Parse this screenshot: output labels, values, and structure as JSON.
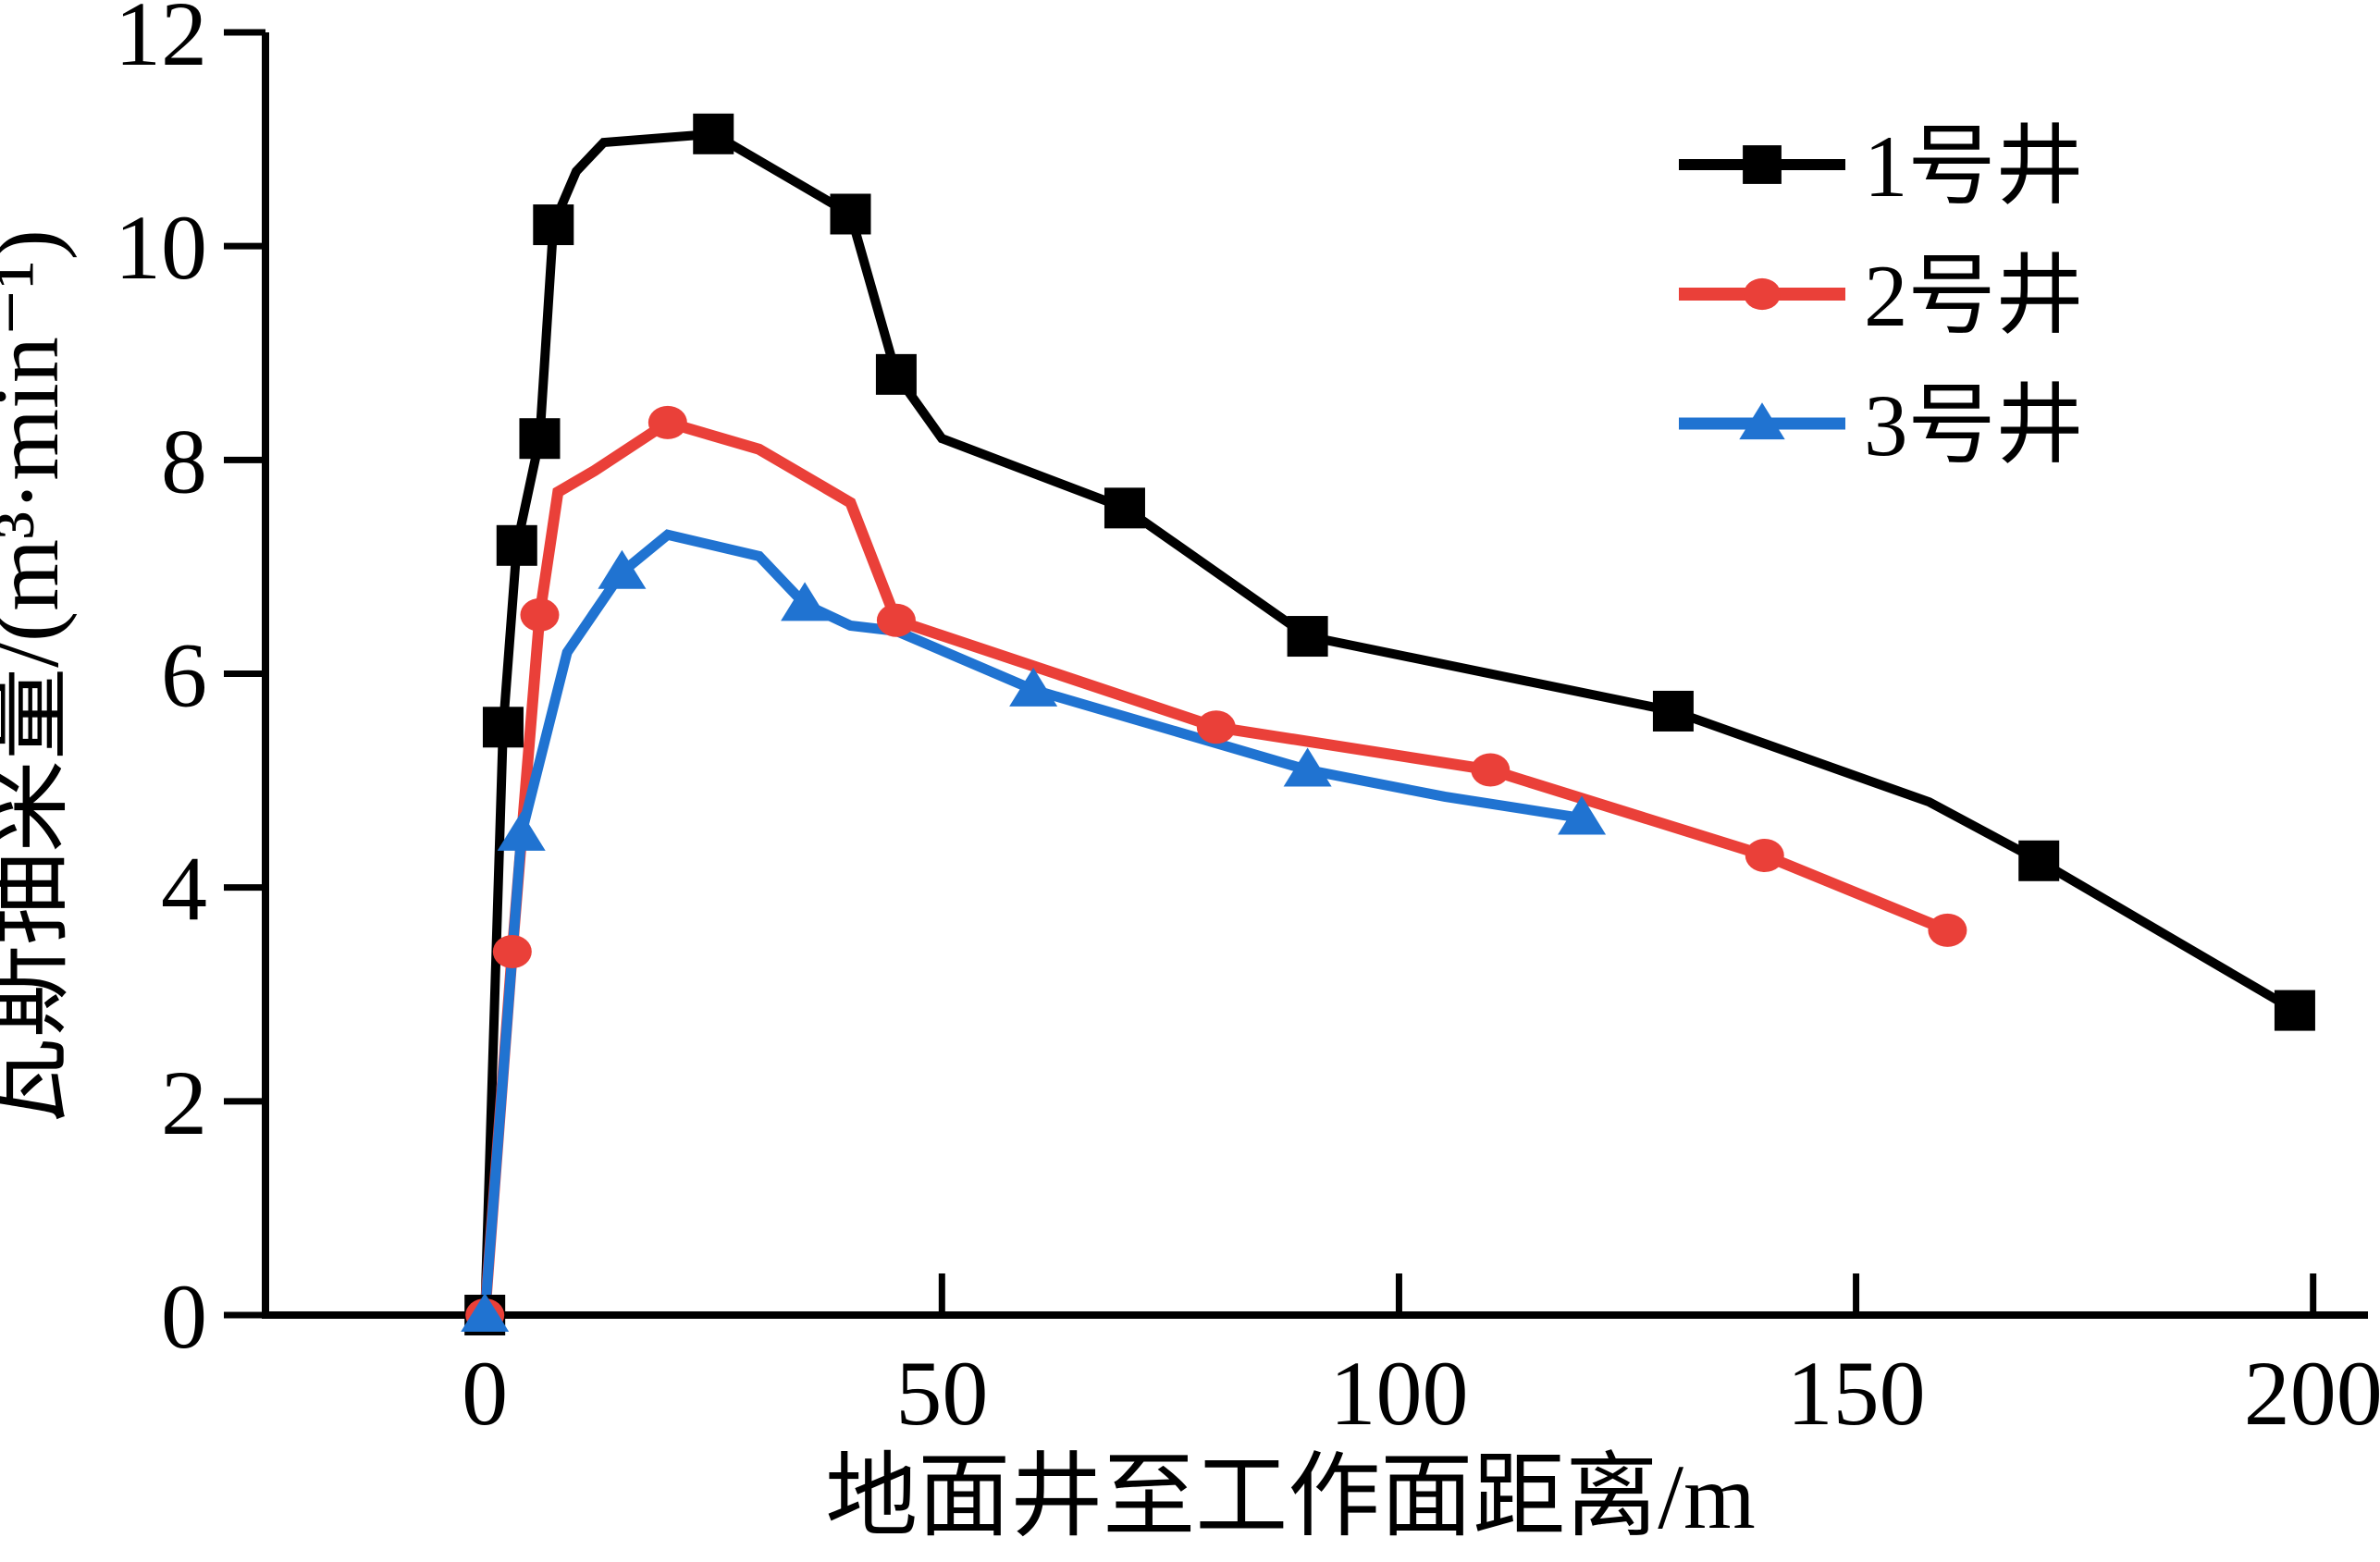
{
  "chart_data": {
    "type": "line",
    "title": "",
    "xlabel": "地面井至工作面距离/m",
    "ylabel": "瓦斯抽采量/(m³·min⁻¹)",
    "xlim": [
      -24,
      206
    ],
    "ylim": [
      0,
      12
    ],
    "xticks": [
      0,
      50,
      100,
      150,
      200
    ],
    "yticks": [
      0,
      2,
      4,
      6,
      8,
      10,
      12
    ],
    "grid": false,
    "legend_position": "top-right",
    "axis_color": "#000000",
    "series": [
      {
        "name": "1号井",
        "color": "#000000",
        "marker": "square",
        "line_width": 10,
        "line_points": [
          [
            0,
            0
          ],
          [
            2,
            5.5
          ],
          [
            3.5,
            7.2
          ],
          [
            6,
            8.2
          ],
          [
            7.5,
            10.2
          ],
          [
            10,
            10.7
          ],
          [
            13,
            10.97
          ],
          [
            25,
            11.05
          ],
          [
            40,
            10.3
          ],
          [
            45,
            8.8
          ],
          [
            50,
            8.2
          ],
          [
            70,
            7.55
          ],
          [
            90,
            6.35
          ],
          [
            130,
            5.65
          ],
          [
            158,
            4.8
          ],
          [
            170,
            4.25
          ],
          [
            198,
            2.85
          ]
        ],
        "marker_points": [
          [
            0,
            0
          ],
          [
            2,
            5.5
          ],
          [
            3.5,
            7.2
          ],
          [
            6,
            8.2
          ],
          [
            7.5,
            10.2
          ],
          [
            25,
            11.05
          ],
          [
            40,
            10.3
          ],
          [
            45,
            8.8
          ],
          [
            70,
            7.55
          ],
          [
            90,
            6.35
          ],
          [
            130,
            5.65
          ],
          [
            170,
            4.25
          ],
          [
            198,
            2.85
          ]
        ]
      },
      {
        "name": "2号井",
        "color": "#ea4039",
        "marker": "circle",
        "line_width": 12,
        "line_points": [
          [
            0,
            0
          ],
          [
            3,
            3.4
          ],
          [
            6,
            6.55
          ],
          [
            8,
            7.7
          ],
          [
            12,
            7.9
          ],
          [
            20,
            8.35
          ],
          [
            30,
            8.1
          ],
          [
            40,
            7.6
          ],
          [
            45,
            6.5
          ],
          [
            80,
            5.5
          ],
          [
            110,
            5.1
          ],
          [
            140,
            4.3
          ],
          [
            160,
            3.6
          ]
        ],
        "marker_points": [
          [
            0,
            0
          ],
          [
            3,
            3.4
          ],
          [
            6,
            6.55
          ],
          [
            20,
            8.35
          ],
          [
            45,
            6.5
          ],
          [
            80,
            5.5
          ],
          [
            110,
            5.1
          ],
          [
            140,
            4.3
          ],
          [
            160,
            3.6
          ]
        ]
      },
      {
        "name": "3号井",
        "color": "#2073d1",
        "marker": "triangle",
        "line_width": 11,
        "line_points": [
          [
            0,
            0
          ],
          [
            4,
            4.5
          ],
          [
            9,
            6.2
          ],
          [
            15,
            6.95
          ],
          [
            20,
            7.3
          ],
          [
            30,
            7.1
          ],
          [
            35,
            6.65
          ],
          [
            40,
            6.45
          ],
          [
            45,
            6.4
          ],
          [
            60,
            5.85
          ],
          [
            90,
            5.1
          ],
          [
            105,
            4.85
          ],
          [
            120,
            4.65
          ]
        ],
        "marker_points": [
          [
            0,
            0
          ],
          [
            4,
            4.5
          ],
          [
            15,
            6.95
          ],
          [
            35,
            6.65
          ],
          [
            60,
            5.85
          ],
          [
            90,
            5.1
          ],
          [
            120,
            4.65
          ]
        ]
      }
    ]
  }
}
